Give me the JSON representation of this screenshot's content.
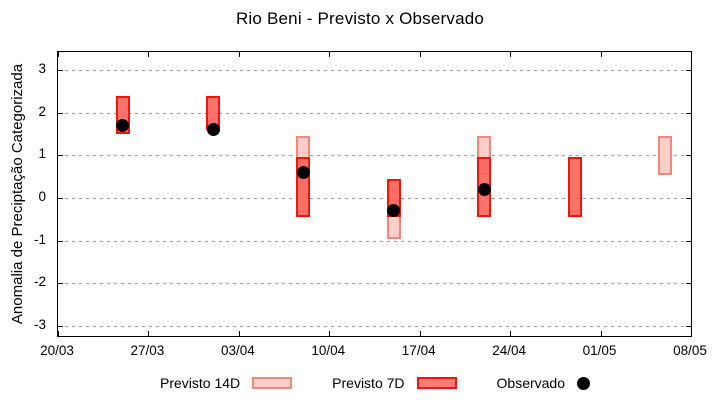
{
  "title": "Rio Beni - Previsto x Observado",
  "y_axis_label": "Anomalia de Preciptação Categorizada",
  "legend": {
    "items": [
      {
        "label": "Previsto 14D",
        "swatch": "range-box-14d"
      },
      {
        "label": "Previsto 7D",
        "swatch": "range-box-7d"
      },
      {
        "label": "Observado",
        "swatch": "filled-circle"
      }
    ]
  },
  "colors": {
    "previsto_14d_fill": "#fbcfc9",
    "previsto_14d_border": "#f0897b",
    "previsto_7d_fill": "rgba(250,100,90,0.9)",
    "previsto_7d_fill_solid": "#fb7e72",
    "previsto_7d_border": "#f2150f",
    "observado": "#000000",
    "gridline": "#9a9a9a",
    "axis": "#000000"
  },
  "chart_data": {
    "type": "range-bars+scatter",
    "title": "Rio Beni - Previsto x Observado",
    "xlabel": "",
    "ylabel": "Anomalia de Preciptação Categorizada",
    "ylim": [
      -3.5,
      3.5
    ],
    "grid": "horizontal-dashed",
    "legend_position": "bottom",
    "x_span_days": 49,
    "x_ticks": [
      {
        "label": "20/03",
        "day": 0
      },
      {
        "label": "27/03",
        "day": 7
      },
      {
        "label": "03/04",
        "day": 14
      },
      {
        "label": "10/04",
        "day": 21
      },
      {
        "label": "17/04",
        "day": 28
      },
      {
        "label": "24/04",
        "day": 35
      },
      {
        "label": "01/05",
        "day": 42
      },
      {
        "label": "08/05",
        "day": 49
      }
    ],
    "y_ticks": [
      3,
      2,
      1,
      0,
      -1,
      -2,
      -3
    ],
    "series": [
      {
        "name": "Previsto 14D",
        "type": "range-bar",
        "fill": "#fbcfc9",
        "border": "#f0897b",
        "points": [
          {
            "date": "08/04",
            "day": 19,
            "low": -0.45,
            "high": 1.45
          },
          {
            "date": "15/04",
            "day": 26,
            "low": -0.95,
            "high": 0.45
          },
          {
            "date": "22/04",
            "day": 33,
            "low": 0.55,
            "high": 1.45
          },
          {
            "date": "06/05",
            "day": 47,
            "low": 0.55,
            "high": 1.45
          }
        ]
      },
      {
        "name": "Previsto 7D",
        "type": "range-bar",
        "fill": "rgba(250,100,90,0.9)",
        "border": "#f2150f",
        "points": [
          {
            "date": "25/03",
            "day": 5,
            "low": 1.5,
            "high": 2.4
          },
          {
            "date": "01/04",
            "day": 12,
            "low": 1.6,
            "high": 2.4
          },
          {
            "date": "08/04",
            "day": 19,
            "low": -0.45,
            "high": 0.95
          },
          {
            "date": "15/04",
            "day": 26,
            "low": -0.45,
            "high": 0.45
          },
          {
            "date": "22/04",
            "day": 33,
            "low": -0.45,
            "high": 0.95
          },
          {
            "date": "29/04",
            "day": 40,
            "low": -0.45,
            "high": 0.95
          }
        ]
      },
      {
        "name": "Observado",
        "type": "scatter",
        "fill": "#000000",
        "points": [
          {
            "date": "25/03",
            "day": 5,
            "value": 1.7
          },
          {
            "date": "01/04",
            "day": 12,
            "value": 1.6
          },
          {
            "date": "08/04",
            "day": 19,
            "value": 0.6
          },
          {
            "date": "15/04",
            "day": 26,
            "value": -0.3
          },
          {
            "date": "22/04",
            "day": 33,
            "value": 0.2
          }
        ]
      }
    ]
  }
}
